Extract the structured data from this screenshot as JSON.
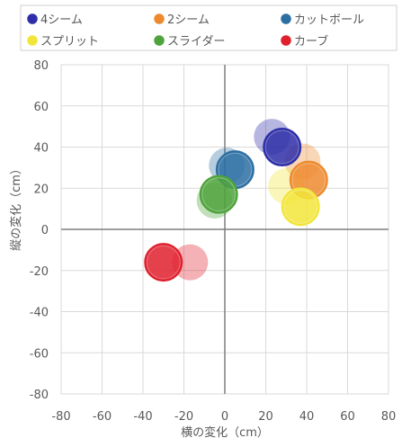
{
  "chart_data": {
    "type": "bubble",
    "xlabel": "横の変化（cm）",
    "ylabel": "縦の変化（cm）",
    "xlim": [
      -80,
      80
    ],
    "ylim": [
      -80,
      80
    ],
    "xticks": [
      -80,
      -60,
      -40,
      -20,
      0,
      20,
      40,
      60,
      80
    ],
    "yticks": [
      -80,
      -60,
      -40,
      -20,
      0,
      20,
      40,
      60,
      80
    ],
    "grid": true,
    "legend_position": "top",
    "series": [
      {
        "name": "4シーム",
        "color": "#2e2ea8",
        "points": [
          {
            "x": 23,
            "y": 45,
            "faded": true
          },
          {
            "x": 28,
            "y": 40,
            "faded": false
          }
        ]
      },
      {
        "name": "2シーム",
        "color": "#ed8a2f",
        "points": [
          {
            "x": 38,
            "y": 33,
            "faded": true
          },
          {
            "x": 41,
            "y": 24,
            "faded": false
          }
        ]
      },
      {
        "name": "カットボール",
        "color": "#2c6fa3",
        "points": [
          {
            "x": 1,
            "y": 31,
            "faded": true
          },
          {
            "x": 5,
            "y": 29,
            "faded": false
          }
        ]
      },
      {
        "name": "スプリット",
        "color": "#f2e53a",
        "points": [
          {
            "x": 30,
            "y": 21,
            "faded": true
          },
          {
            "x": 37,
            "y": 11,
            "faded": false
          }
        ]
      },
      {
        "name": "スライダー",
        "color": "#4fa33c",
        "points": [
          {
            "x": -5,
            "y": 14,
            "faded": true
          },
          {
            "x": -3,
            "y": 17,
            "faded": false
          }
        ]
      },
      {
        "name": "カーブ",
        "color": "#e0202e",
        "points": [
          {
            "x": -17,
            "y": -16,
            "faded": true
          },
          {
            "x": -30,
            "y": -16,
            "faded": false
          }
        ]
      }
    ]
  }
}
